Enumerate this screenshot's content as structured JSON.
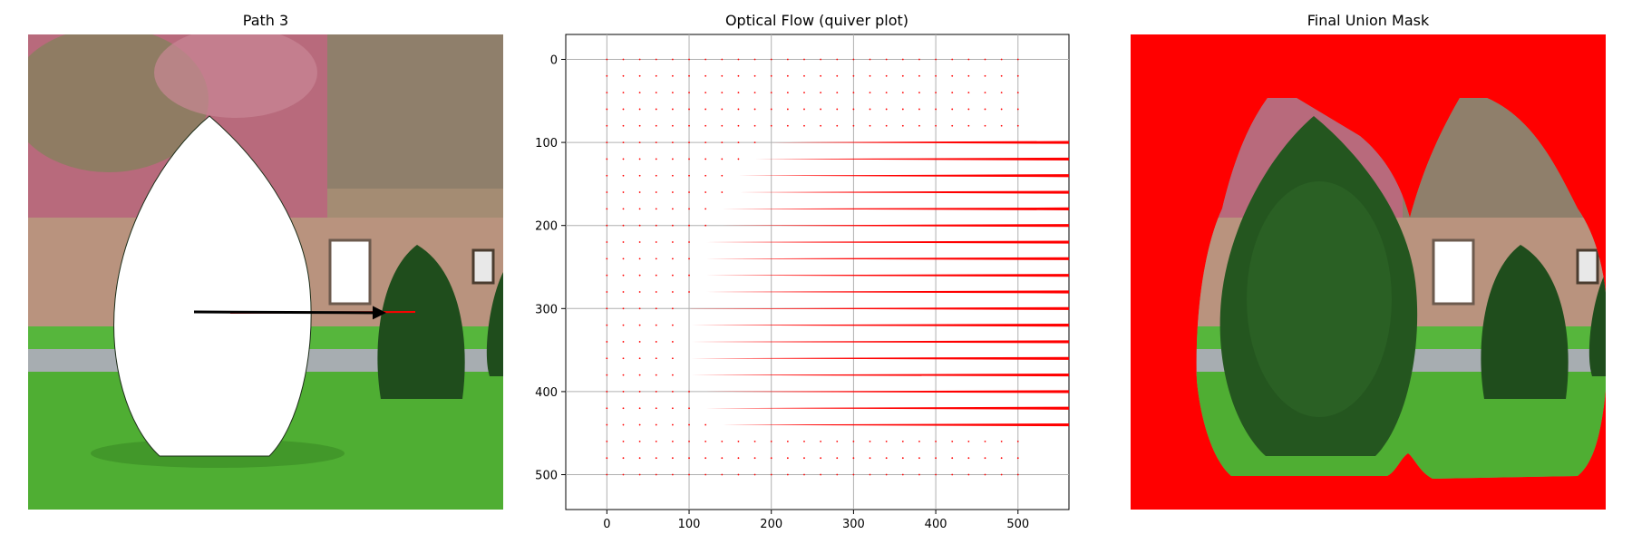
{
  "panels": {
    "left": {
      "title": "Path 3"
    },
    "middle": {
      "title": "Optical Flow (quiver plot)"
    },
    "right": {
      "title": "Final Union Mask"
    }
  },
  "colors": {
    "background": "#ffffff",
    "arrow_red": "#ff0000",
    "mask_red": "#ff0000",
    "path_black": "#000000",
    "grid": "#b0b0b0",
    "grass": "#4fae33",
    "grass_dark": "#3d8f27",
    "wall": "#b9937e",
    "hedge": "#1f4d1c",
    "flowers": "#b86a7c",
    "sky_foliage": "#9a8b6a"
  },
  "chart_data": {
    "type": "quiver",
    "title": "Optical Flow (quiver plot)",
    "xlabel": "",
    "ylabel": "",
    "xlim": [
      -50,
      562
    ],
    "ylim": [
      542,
      -30
    ],
    "xticks": [
      0,
      100,
      200,
      300,
      400,
      500
    ],
    "yticks": [
      0,
      100,
      200,
      300,
      400,
      500
    ],
    "grid": true,
    "y_inverted": true,
    "arrow_color": "#ff0000",
    "grid_spacing": 20,
    "grid_range_x": [
      0,
      500
    ],
    "grid_range_y": [
      0,
      500
    ],
    "long_arrows": [
      {
        "y": 100,
        "x_start": 200
      },
      {
        "y": 120,
        "x_start": 180
      },
      {
        "y": 140,
        "x_start": 160
      },
      {
        "y": 160,
        "x_start": 160
      },
      {
        "y": 180,
        "x_start": 140
      },
      {
        "y": 200,
        "x_start": 140
      },
      {
        "y": 220,
        "x_start": 120
      },
      {
        "y": 240,
        "x_start": 120
      },
      {
        "y": 260,
        "x_start": 120
      },
      {
        "y": 280,
        "x_start": 120
      },
      {
        "y": 300,
        "x_start": 100
      },
      {
        "y": 320,
        "x_start": 100
      },
      {
        "y": 340,
        "x_start": 100
      },
      {
        "y": 360,
        "x_start": 100
      },
      {
        "y": 380,
        "x_start": 100
      },
      {
        "y": 400,
        "x_start": 120
      },
      {
        "y": 420,
        "x_start": 120
      },
      {
        "y": 440,
        "x_start": 140
      }
    ],
    "long_arrow_x_end": 562
  }
}
